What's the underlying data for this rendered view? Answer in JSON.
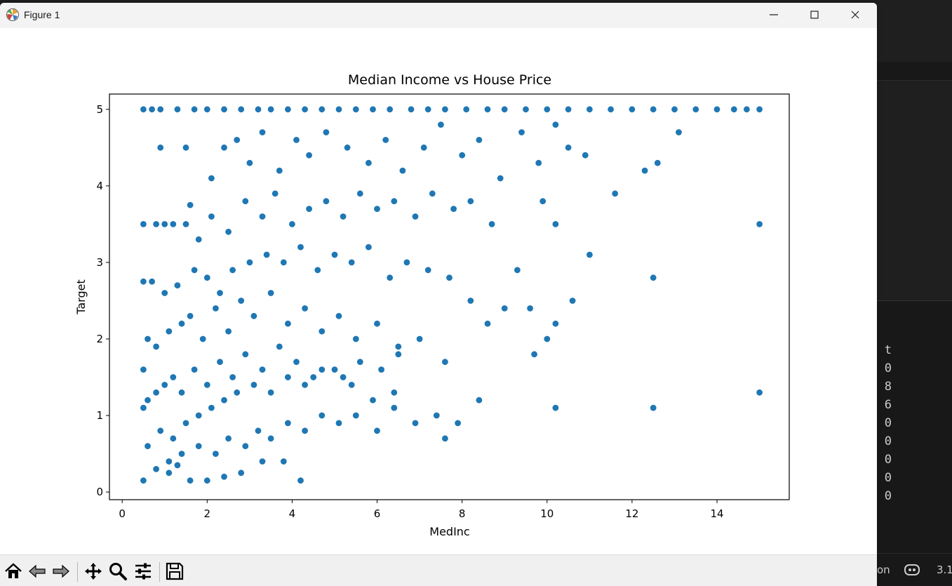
{
  "window": {
    "title": "Figure 1"
  },
  "background": {
    "terminal_chars": [
      "t",
      "0",
      "8",
      "6",
      "0",
      "0",
      "0",
      "0",
      "0"
    ],
    "status_left": "on",
    "status_right": "3.1"
  },
  "toolbar": {
    "tools": [
      "home-icon",
      "back-icon",
      "forward-icon",
      "pan-icon",
      "zoom-icon",
      "configure-subplots-icon",
      "save-icon"
    ]
  },
  "chart_data": {
    "type": "scatter",
    "title": "Median Income vs House Price",
    "xlabel": "MedInc",
    "ylabel": "Target",
    "xlim": [
      -0.3,
      15.7
    ],
    "ylim": [
      -0.1,
      5.2
    ],
    "xticks": [
      0,
      2,
      4,
      6,
      8,
      10,
      12,
      14
    ],
    "yticks": [
      0,
      1,
      2,
      3,
      4,
      5
    ],
    "grid": false,
    "legend": "none",
    "color": "#1f77b4",
    "series": [
      {
        "x": [
          0.5,
          0.7,
          0.9,
          1.3,
          1.7,
          2.0,
          2.4,
          2.8,
          3.2,
          3.5,
          3.9,
          4.3,
          4.7,
          5.1,
          5.5,
          5.9,
          6.3,
          6.8,
          7.2,
          7.6,
          8.1,
          8.6,
          9.0,
          9.5,
          10.0,
          10.5,
          11.0,
          11.5,
          12.0,
          12.5,
          13.0,
          13.5,
          14.0,
          14.4,
          14.7,
          15.0,
          0.9,
          1.5,
          1.6,
          2.1,
          2.4,
          2.7,
          3.0,
          3.3,
          3.7,
          4.1,
          4.4,
          4.8,
          5.3,
          5.8,
          6.2,
          6.6,
          7.1,
          7.5,
          8.0,
          8.4,
          8.9,
          9.4,
          9.8,
          10.2,
          10.5,
          10.9,
          11.6,
          12.3,
          12.6,
          13.1,
          0.5,
          0.8,
          1.0,
          1.2,
          1.5,
          1.8,
          2.1,
          2.5,
          2.9,
          3.3,
          3.6,
          4.0,
          4.4,
          4.8,
          5.2,
          5.6,
          6.0,
          6.4,
          6.9,
          7.3,
          7.8,
          8.2,
          8.7,
          9.3,
          9.9,
          10.2,
          11.0,
          12.5,
          0.5,
          0.7,
          1.0,
          1.3,
          1.7,
          2.0,
          2.3,
          2.6,
          3.0,
          3.4,
          3.8,
          4.2,
          4.6,
          5.0,
          5.4,
          5.8,
          6.3,
          6.7,
          7.2,
          7.7,
          8.2,
          8.6,
          9.0,
          9.6,
          10.2,
          10.6,
          15.0,
          0.5,
          0.6,
          0.8,
          1.1,
          1.4,
          1.6,
          1.9,
          2.2,
          2.5,
          2.8,
          3.1,
          3.5,
          3.9,
          4.3,
          4.7,
          5.1,
          5.5,
          6.0,
          6.5,
          7.0,
          7.6,
          9.7,
          10.0,
          0.5,
          0.6,
          0.8,
          1.0,
          1.2,
          1.4,
          1.7,
          2.0,
          2.3,
          2.6,
          2.9,
          3.3,
          3.7,
          4.1,
          4.5,
          5.0,
          5.4,
          5.9,
          6.4,
          7.6,
          10.2,
          12.5,
          15.0,
          0.5,
          0.8,
          1.1,
          1.3,
          1.6,
          2.0,
          2.4,
          2.8,
          3.3,
          3.8,
          4.2,
          1.1,
          1.4,
          1.8,
          2.2,
          2.5,
          2.9,
          3.2,
          3.5,
          3.9,
          4.3,
          4.7,
          5.1,
          5.5,
          6.0,
          6.4,
          6.9,
          7.4,
          7.9,
          8.4,
          0.6,
          0.9,
          1.2,
          1.5,
          1.8,
          2.1,
          2.4,
          2.7,
          3.1,
          3.5,
          3.9,
          4.3,
          4.7,
          5.2,
          5.6,
          6.1,
          6.5
        ],
        "y": [
          5.0,
          5.0,
          5.0,
          5.0,
          5.0,
          5.0,
          5.0,
          5.0,
          5.0,
          5.0,
          5.0,
          5.0,
          5.0,
          5.0,
          5.0,
          5.0,
          5.0,
          5.0,
          5.0,
          5.0,
          5.0,
          5.0,
          5.0,
          5.0,
          5.0,
          5.0,
          5.0,
          5.0,
          5.0,
          5.0,
          5.0,
          5.0,
          5.0,
          5.0,
          5.0,
          5.0,
          4.5,
          4.5,
          3.75,
          4.1,
          4.5,
          4.6,
          4.3,
          4.7,
          4.2,
          4.6,
          4.4,
          4.7,
          4.5,
          4.3,
          4.6,
          4.2,
          4.5,
          4.8,
          4.4,
          4.6,
          4.1,
          4.7,
          4.3,
          4.8,
          4.5,
          4.4,
          3.9,
          4.2,
          4.3,
          4.7,
          3.5,
          3.5,
          3.5,
          3.5,
          3.5,
          3.3,
          3.6,
          3.4,
          3.8,
          3.6,
          3.9,
          3.5,
          3.7,
          3.8,
          3.6,
          3.9,
          3.7,
          3.8,
          3.6,
          3.9,
          3.7,
          3.8,
          3.5,
          2.9,
          3.8,
          3.5,
          3.1,
          2.8,
          2.75,
          2.75,
          2.6,
          2.7,
          2.9,
          2.8,
          2.6,
          2.9,
          3.0,
          3.1,
          3.0,
          3.2,
          2.9,
          3.1,
          3.0,
          3.2,
          2.8,
          3.0,
          2.9,
          2.8,
          2.5,
          2.2,
          2.4,
          2.4,
          2.2,
          2.5,
          3.5,
          1.6,
          2.0,
          1.9,
          2.1,
          2.2,
          2.3,
          2.0,
          2.4,
          2.1,
          2.5,
          2.3,
          2.6,
          2.2,
          2.4,
          2.1,
          2.3,
          2.0,
          2.2,
          1.9,
          2.0,
          1.7,
          1.8,
          2.0,
          1.1,
          1.2,
          1.3,
          1.4,
          1.5,
          1.3,
          1.6,
          1.4,
          1.7,
          1.5,
          1.8,
          1.6,
          1.9,
          1.7,
          1.5,
          1.6,
          1.4,
          1.2,
          1.3,
          0.7,
          1.1,
          1.1,
          1.3,
          0.15,
          0.3,
          0.25,
          0.35,
          0.15,
          0.15,
          0.2,
          0.25,
          0.4,
          0.4,
          0.15,
          0.4,
          0.5,
          0.6,
          0.5,
          0.7,
          0.6,
          0.8,
          0.7,
          0.9,
          0.8,
          1.0,
          0.9,
          1.0,
          0.8,
          1.1,
          0.9,
          1.0,
          0.9,
          1.2,
          0.6,
          0.8,
          0.7,
          0.9,
          1.0,
          1.1,
          1.2,
          1.3,
          1.4,
          1.3,
          1.5,
          1.4,
          1.6,
          1.5,
          1.7,
          1.6,
          1.8
        ]
      }
    ]
  }
}
